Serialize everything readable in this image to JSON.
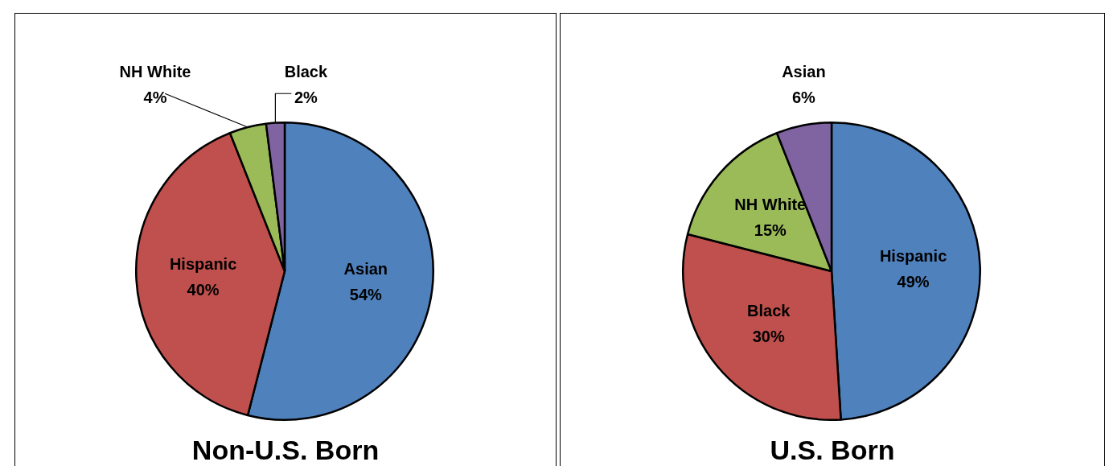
{
  "chart_data": [
    {
      "type": "pie",
      "title": "Non-U.S. Born",
      "categories": [
        "Asian",
        "Hispanic",
        "NH White",
        "Black"
      ],
      "values": [
        54,
        40,
        4,
        2
      ],
      "value_labels": [
        "54%",
        "40%",
        "4%",
        "2%"
      ],
      "colors": [
        "#4f81bd",
        "#c0504d",
        "#9bbb59",
        "#8064a2"
      ]
    },
    {
      "type": "pie",
      "title": "U.S. Born",
      "categories": [
        "Hispanic",
        "Black",
        "NH White",
        "Asian"
      ],
      "values": [
        49,
        30,
        15,
        6
      ],
      "value_labels": [
        "49%",
        "30%",
        "15%",
        "6%"
      ],
      "colors": [
        "#4f81bd",
        "#c0504d",
        "#9bbb59",
        "#8064a2"
      ]
    }
  ]
}
